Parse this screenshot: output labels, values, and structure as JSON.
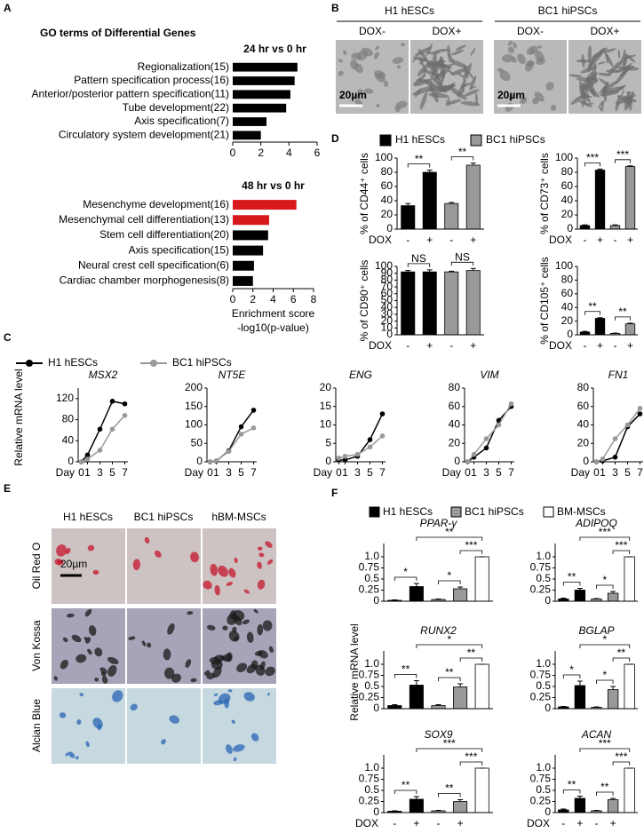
{
  "panel_labels": [
    "A",
    "B",
    "C",
    "D",
    "E",
    "F"
  ],
  "panel_B": {
    "groups": [
      "H1 hESCs",
      "BC1 hiPSCs"
    ],
    "conditions": [
      "DOX-",
      "DOX+",
      "DOX-",
      "DOX+"
    ],
    "scale_bar": "20µm"
  },
  "panel_E": {
    "columns": [
      "H1 hESCs",
      "BC1 hiPSCs",
      "hBM-MSCs"
    ],
    "rows": [
      "Oil Red O",
      "Von Kossa",
      "Alcian Blue"
    ],
    "scale_bar": "20µm"
  },
  "legend_C": [
    {
      "name": "H1 hESCs",
      "color": "#000000"
    },
    {
      "name": "BC1 hiPSCs",
      "color": "#999999"
    }
  ],
  "legend_D": [
    {
      "name": "H1 hESCs",
      "color": "#000000"
    },
    {
      "name": "BC1 hiPSCs",
      "color": "#999999"
    }
  ],
  "legend_F": [
    {
      "name": "H1 hESCs",
      "color": "#000000"
    },
    {
      "name": "BC1 hiPSCs",
      "color": "#999999"
    },
    {
      "name": "BM-MSCs",
      "color": "#ffffff"
    }
  ],
  "ylabel_C": "Relative mRNA level",
  "ylabel_F": "Relative mRNA level",
  "chart_data": [
    {
      "type": "barh",
      "title": "GO terms of Differential Genes",
      "subtitle": "24 hr vs 0 hr",
      "categories": [
        "Regionalization(15)",
        "Pattern specification process(16)",
        "Anterior/posterior pattern specification(11)",
        "Tube development(22)",
        "Axis specification(7)",
        "Circulatory system development(21)"
      ],
      "values": [
        4.6,
        4.4,
        4.1,
        3.8,
        2.4,
        2.0
      ],
      "color": "#000000",
      "xlim": [
        0,
        6
      ],
      "xticks": [
        0,
        2,
        4,
        6
      ]
    },
    {
      "type": "barh",
      "subtitle": "48 hr vs 0 hr",
      "categories": [
        "Mesenchyme development(16)",
        "Mesenchymal cell differentiation(13)",
        "Stem cell differentiation(20)",
        "Axis specification(15)",
        "Neural crest cell specification(6)",
        "Cardiac chamber morphogenesis(8)"
      ],
      "values": [
        6.3,
        3.6,
        3.5,
        3.0,
        2.1,
        2.0
      ],
      "colors": [
        "#d7191c",
        "#d7191c",
        "#000000",
        "#000000",
        "#000000",
        "#000000"
      ],
      "xlim": [
        0,
        8
      ],
      "xticks": [
        0,
        2,
        4,
        6,
        8
      ],
      "xlabel": [
        "Enrichment score",
        "-log10(p-value)"
      ]
    },
    {
      "type": "bar",
      "ylabel": "% of CD44⁺ cells",
      "categories": [
        "-",
        "+",
        "-",
        "+"
      ],
      "xlabel": "DOX",
      "values": [
        33,
        80,
        36,
        90
      ],
      "errors": [
        3,
        3,
        1.5,
        3
      ],
      "ylim": [
        0,
        100
      ],
      "yticks": [
        0,
        20,
        40,
        60,
        80,
        100
      ],
      "annotations": [
        "**",
        "**"
      ]
    },
    {
      "type": "bar",
      "ylabel": "% of CD73⁺ cells",
      "categories": [
        "-",
        "+",
        "-",
        "+"
      ],
      "xlabel": "DOX",
      "values": [
        5,
        83,
        5,
        88
      ],
      "errors": [
        1,
        1.5,
        1,
        1
      ],
      "ylim": [
        0,
        100
      ],
      "yticks": [
        0,
        20,
        40,
        60,
        80,
        100
      ],
      "annotations": [
        "***",
        "***"
      ]
    },
    {
      "type": "bar",
      "ylabel": "% of CD90⁺ cells",
      "categories": [
        "-",
        "+",
        "-",
        "+"
      ],
      "xlabel": "DOX",
      "values": [
        92,
        92,
        92,
        94
      ],
      "errors": [
        2,
        3,
        1,
        3
      ],
      "ylim": [
        0,
        100
      ],
      "yticks": [
        0,
        10,
        20,
        30,
        40,
        50,
        60,
        70,
        80,
        90,
        100
      ],
      "annotations": [
        "NS",
        "NS"
      ]
    },
    {
      "type": "bar",
      "ylabel": "% of CD105⁺ cells",
      "categories": [
        "-",
        "+",
        "-",
        "+"
      ],
      "xlabel": "DOX",
      "values": [
        4,
        24,
        2,
        16
      ],
      "errors": [
        1,
        1,
        0.5,
        1
      ],
      "ylim": [
        0,
        100
      ],
      "yticks": [
        0,
        20,
        40,
        60,
        80,
        100
      ],
      "annotations": [
        "**",
        "**"
      ]
    },
    {
      "type": "line",
      "title": "MSX2",
      "xlabel": "Day",
      "x": [
        0,
        1,
        3,
        5,
        7
      ],
      "xlim": [
        -0.5,
        7.5
      ],
      "xticks": [
        0,
        1,
        3,
        5,
        7
      ],
      "ylim": [
        0,
        140
      ],
      "yticks": [
        0,
        40,
        80,
        120
      ],
      "series": [
        {
          "values": [
            0,
            13,
            62,
            115,
            110
          ]
        },
        {
          "values": [
            0,
            5,
            22,
            62,
            88
          ]
        }
      ]
    },
    {
      "type": "line",
      "title": "NT5E",
      "xlabel": "Day",
      "x": [
        0,
        1,
        3,
        5,
        7
      ],
      "xlim": [
        -0.5,
        7.5
      ],
      "xticks": [
        0,
        1,
        3,
        5,
        7
      ],
      "ylim": [
        0,
        200
      ],
      "yticks": [
        0,
        50,
        100,
        150,
        200
      ],
      "series": [
        {
          "values": [
            0,
            2,
            30,
            95,
            140
          ]
        },
        {
          "values": [
            0,
            3,
            28,
            75,
            92
          ]
        }
      ]
    },
    {
      "type": "line",
      "title": "ENG",
      "xlabel": "Day",
      "x": [
        0,
        1,
        3,
        5,
        7
      ],
      "xlim": [
        -0.5,
        7.5
      ],
      "xticks": [
        0,
        1,
        3,
        5,
        7
      ],
      "ylim": [
        0,
        20
      ],
      "yticks": [
        0,
        5,
        10,
        15,
        20
      ],
      "series": [
        {
          "values": [
            0.5,
            0.5,
            1.5,
            6,
            13
          ]
        },
        {
          "values": [
            1,
            1.5,
            2,
            4,
            7
          ]
        }
      ]
    },
    {
      "type": "line",
      "title": "VIM",
      "xlabel": "Day",
      "x": [
        0,
        1,
        3,
        5,
        7
      ],
      "xlim": [
        -0.5,
        7.5
      ],
      "xticks": [
        0,
        1,
        3,
        5,
        7
      ],
      "ylim": [
        0,
        80
      ],
      "yticks": [
        0,
        20,
        40,
        60,
        80
      ],
      "series": [
        {
          "values": [
            0,
            5,
            15,
            45,
            60
          ]
        },
        {
          "values": [
            0,
            8,
            25,
            40,
            63
          ]
        }
      ]
    },
    {
      "type": "line",
      "title": "FN1",
      "xlabel": "Day",
      "x": [
        0,
        1,
        3,
        5,
        7
      ],
      "xlim": [
        -0.5,
        7.5
      ],
      "xticks": [
        0,
        1,
        3,
        5,
        7
      ],
      "ylim": [
        0,
        80
      ],
      "yticks": [
        0,
        20,
        40,
        60,
        80
      ],
      "series": [
        {
          "values": [
            0,
            1,
            5,
            38,
            52
          ]
        },
        {
          "values": [
            0,
            3,
            25,
            40,
            58
          ]
        }
      ]
    },
    {
      "type": "bar",
      "title": "PPAR-γ",
      "values": [
        0.02,
        0.33,
        0.04,
        0.28,
        1.0
      ],
      "errors": [
        0.01,
        0.07,
        0.01,
        0.04,
        0
      ],
      "ylim": [
        0,
        1.3
      ],
      "yticks": [
        0,
        0.25,
        0.5,
        0.75,
        {
          "value": 1,
          "label": "1.0"
        }
      ],
      "annotations": [
        "*",
        "*",
        "**",
        "***"
      ]
    },
    {
      "type": "bar",
      "title": "ADIPOQ",
      "values": [
        0.05,
        0.25,
        0.05,
        0.18,
        1.0
      ],
      "errors": [
        0.02,
        0.04,
        0.01,
        0.04,
        0
      ],
      "ylim": [
        0,
        1.3
      ],
      "yticks": [
        0,
        0.25,
        0.5,
        0.75,
        {
          "value": 1,
          "label": "1.0"
        }
      ],
      "annotations": [
        "**",
        "*",
        "***",
        "***"
      ]
    },
    {
      "type": "bar",
      "title": "RUNX2",
      "values": [
        0.07,
        0.53,
        0.07,
        0.49,
        1.0
      ],
      "errors": [
        0.02,
        0.1,
        0.02,
        0.07,
        0
      ],
      "ylim": [
        0,
        1.3
      ],
      "yticks": [
        0,
        0.25,
        0.5,
        0.75,
        {
          "value": 1,
          "label": "1.0"
        }
      ],
      "annotations": [
        "**",
        "**",
        "*",
        "**"
      ]
    },
    {
      "type": "bar",
      "title": "BGLAP",
      "values": [
        0.04,
        0.52,
        0.03,
        0.43,
        1.0
      ],
      "errors": [
        0.01,
        0.1,
        0.01,
        0.07,
        0
      ],
      "ylim": [
        0,
        1.3
      ],
      "yticks": [
        0,
        0.25,
        0.5,
        0.75,
        {
          "value": 1,
          "label": "1.0"
        }
      ],
      "annotations": [
        "*",
        "*",
        "*",
        "**"
      ]
    },
    {
      "type": "bar",
      "title": "SOX9",
      "categories": [
        "-",
        "+",
        "-",
        "+",
        null
      ],
      "xlabel": "DOX",
      "values": [
        0.03,
        0.3,
        0.04,
        0.25,
        1.0
      ],
      "errors": [
        0.01,
        0.06,
        0.01,
        0.04,
        0
      ],
      "ylim": [
        0,
        1.3
      ],
      "yticks": [
        0,
        0.25,
        0.5,
        0.75,
        {
          "value": 1,
          "label": "1.0"
        }
      ],
      "annotations": [
        "**",
        "**",
        "***",
        "***"
      ]
    },
    {
      "type": "bar",
      "title": "ACAN",
      "categories": [
        "-",
        "+",
        "-",
        "+",
        null
      ],
      "xlabel": "DOX",
      "values": [
        0.06,
        0.32,
        0.04,
        0.29,
        1.0
      ],
      "errors": [
        0.02,
        0.05,
        0.01,
        0.03,
        0
      ],
      "ylim": [
        0,
        1.3
      ],
      "yticks": [
        0,
        0.25,
        0.5,
        0.75,
        {
          "value": 1,
          "label": "1.0"
        }
      ],
      "annotations": [
        "**",
        "**",
        "***",
        "***"
      ]
    }
  ]
}
